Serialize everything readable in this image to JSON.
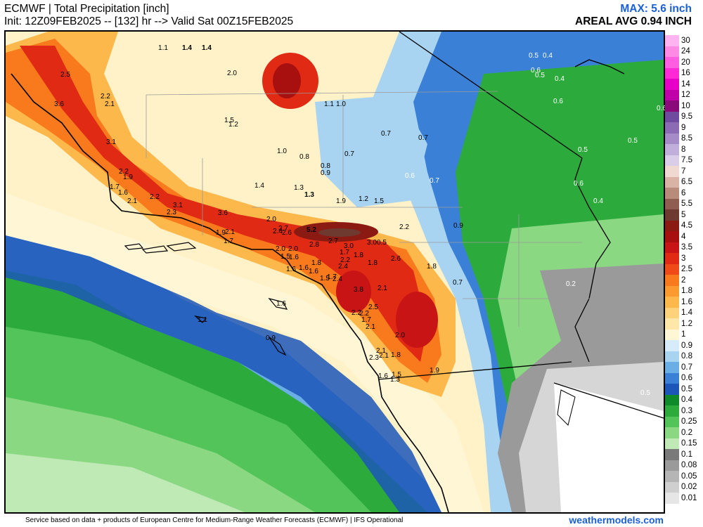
{
  "header": {
    "title": "ECMWF | Total Precipitation [inch]",
    "init": "Init: 12Z09FEB2025 -- [132] hr --> Valid Sat 00Z15FEB2025",
    "max": "MAX: 5.6 inch",
    "areal_avg": "AREAL AVG 0.94 INCH"
  },
  "footer": {
    "credit": "Service based on data + products of European Centre for Medium-Range Weather Forecasts (ECMWF) | IFS Operational",
    "brand": "weathermodels.com"
  },
  "legend": [
    {
      "label": "30",
      "color": "#ffb3f0"
    },
    {
      "label": "24",
      "color": "#ff8ae6"
    },
    {
      "label": "20",
      "color": "#ff5ee0"
    },
    {
      "label": "16",
      "color": "#ff2ad6"
    },
    {
      "label": "14",
      "color": "#e600c8"
    },
    {
      "label": "12",
      "color": "#c000a8"
    },
    {
      "label": "10",
      "color": "#8a0a7a"
    },
    {
      "label": "9.5",
      "color": "#6e4b9e"
    },
    {
      "label": "9",
      "color": "#8a6bb4"
    },
    {
      "label": "8.5",
      "color": "#a58cc8"
    },
    {
      "label": "8",
      "color": "#c0aedb"
    },
    {
      "label": "7.5",
      "color": "#d9cde8"
    },
    {
      "label": "7",
      "color": "#f0d9d0"
    },
    {
      "label": "6.5",
      "color": "#d9b3a6"
    },
    {
      "label": "6",
      "color": "#b88b7a"
    },
    {
      "label": "5.5",
      "color": "#8f5e50"
    },
    {
      "label": "5",
      "color": "#6e3a30"
    },
    {
      "label": "4.5",
      "color": "#8b1a12"
    },
    {
      "label": "4",
      "color": "#a80f0f"
    },
    {
      "label": "3.5",
      "color": "#c81414"
    },
    {
      "label": "3",
      "color": "#e02a14"
    },
    {
      "label": "2.5",
      "color": "#f04a18"
    },
    {
      "label": "2",
      "color": "#f87a1c"
    },
    {
      "label": "1.8",
      "color": "#fb9a2e"
    },
    {
      "label": "1.6",
      "color": "#fdb84c"
    },
    {
      "label": "1.4",
      "color": "#fed27a"
    },
    {
      "label": "1.2",
      "color": "#fee7a8"
    },
    {
      "label": "1",
      "color": "#fff6d6"
    },
    {
      "label": "0.9",
      "color": "#d6ecfa"
    },
    {
      "label": "0.8",
      "color": "#a8d4f2"
    },
    {
      "label": "0.7",
      "color": "#6aaee6"
    },
    {
      "label": "0.6",
      "color": "#3a80d6"
    },
    {
      "label": "0.5",
      "color": "#1c56b8"
    },
    {
      "label": "0.4",
      "color": "#0e8a2a"
    },
    {
      "label": "0.3",
      "color": "#2cab3c"
    },
    {
      "label": "0.25",
      "color": "#52c45a"
    },
    {
      "label": "0.2",
      "color": "#8ad882"
    },
    {
      "label": "0.15",
      "color": "#bfeab5"
    },
    {
      "label": "0.1",
      "color": "#7a7a7a"
    },
    {
      "label": "0.08",
      "color": "#9a9a9a"
    },
    {
      "label": "0.05",
      "color": "#b5b5b5"
    },
    {
      "label": "0.02",
      "color": "#cfcfcf"
    },
    {
      "label": "0.01",
      "color": "#e6e6e6"
    }
  ],
  "map_labels": [
    {
      "text": "1.1"
    },
    {
      "text": "1.4"
    },
    {
      "text": "1.4"
    },
    {
      "text": "2.0"
    },
    {
      "text": "2.5"
    },
    {
      "text": "2.2"
    },
    {
      "text": "2.1"
    },
    {
      "text": "3.6"
    },
    {
      "text": "1.5"
    },
    {
      "text": "1.2"
    },
    {
      "text": "1.1"
    },
    {
      "text": "1.0"
    },
    {
      "text": "3.1"
    },
    {
      "text": "1.0"
    },
    {
      "text": "0.8"
    },
    {
      "text": "0.8"
    },
    {
      "text": "0.9"
    },
    {
      "text": "0.7"
    },
    {
      "text": "0.7"
    },
    {
      "text": "0.7"
    },
    {
      "text": "2.2"
    },
    {
      "text": "1.9"
    },
    {
      "text": "1.7"
    },
    {
      "text": "1.6"
    },
    {
      "text": "2.1"
    },
    {
      "text": "2.2"
    },
    {
      "text": "3.1"
    },
    {
      "text": "2.3"
    },
    {
      "text": "1.4"
    },
    {
      "text": "1.3"
    },
    {
      "text": "1.3"
    },
    {
      "text": "1.9"
    },
    {
      "text": "1.2"
    },
    {
      "text": "1.5"
    },
    {
      "text": "3.6"
    },
    {
      "text": "2.0"
    },
    {
      "text": "1.9"
    },
    {
      "text": "2.1"
    },
    {
      "text": "1.7"
    },
    {
      "text": "2.4"
    },
    {
      "text": "2.7"
    },
    {
      "text": "2.6"
    },
    {
      "text": "5.2"
    },
    {
      "text": "2.2"
    },
    {
      "text": "0.9"
    },
    {
      "text": "2.0"
    },
    {
      "text": "2.0"
    },
    {
      "text": "2.8"
    },
    {
      "text": "2.7"
    },
    {
      "text": "3.0"
    },
    {
      "text": "3.0"
    },
    {
      "text": "0.5"
    },
    {
      "text": "1.5"
    },
    {
      "text": "1.6"
    },
    {
      "text": "1.7"
    },
    {
      "text": "1.8"
    },
    {
      "text": "2.2"
    },
    {
      "text": "2.4"
    },
    {
      "text": "1.8"
    },
    {
      "text": "2.6"
    },
    {
      "text": "1.8"
    },
    {
      "text": "1.6"
    },
    {
      "text": "1.6"
    },
    {
      "text": "1.6"
    },
    {
      "text": "1.8"
    },
    {
      "text": "1.5"
    },
    {
      "text": "1.7"
    },
    {
      "text": "2.4"
    },
    {
      "text": "3.8"
    },
    {
      "text": "2.1"
    },
    {
      "text": "0.7"
    },
    {
      "text": "1.6"
    },
    {
      "text": "2.2"
    },
    {
      "text": "2.2"
    },
    {
      "text": "2.5"
    },
    {
      "text": "1.7"
    },
    {
      "text": "2.1"
    },
    {
      "text": "2.0"
    },
    {
      "text": "1.1"
    },
    {
      "text": "0.9"
    },
    {
      "text": "2.1"
    },
    {
      "text": "2.3"
    },
    {
      "text": "2.1"
    },
    {
      "text": "1.8"
    },
    {
      "text": "1.9"
    },
    {
      "text": "1.6"
    },
    {
      "text": "1.5"
    },
    {
      "text": "1.3"
    },
    {
      "text": "0.5"
    },
    {
      "text": "0.4"
    },
    {
      "text": "0.6"
    },
    {
      "text": "0.5"
    },
    {
      "text": "0.4"
    },
    {
      "text": "0.6"
    },
    {
      "text": "0.6"
    },
    {
      "text": "0.5"
    },
    {
      "text": "0.5"
    },
    {
      "text": "0.6"
    },
    {
      "text": "0.6"
    },
    {
      "text": "0.7"
    },
    {
      "text": "0.4"
    },
    {
      "text": "0.2"
    },
    {
      "text": "0.5"
    }
  ]
}
